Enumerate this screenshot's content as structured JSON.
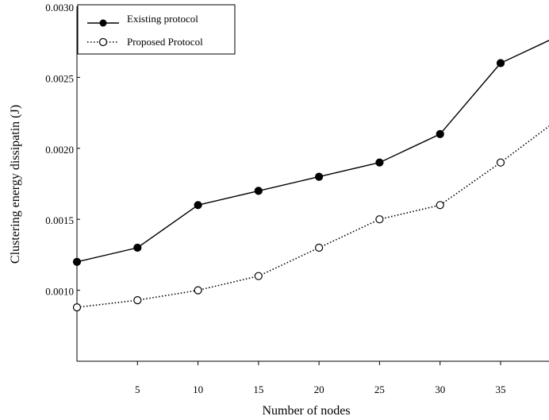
{
  "chart_data": {
    "type": "line",
    "xlabel": "Number of nodes",
    "ylabel": "Clustering energy dissipatin (J)",
    "x": [
      0,
      5,
      10,
      15,
      20,
      25,
      30,
      35,
      40
    ],
    "x_tick_labels": [
      "5",
      "10",
      "15",
      "20",
      "25",
      "30",
      "35"
    ],
    "x_tick_values": [
      5,
      10,
      15,
      20,
      25,
      30,
      35
    ],
    "xlim": [
      0,
      39
    ],
    "ylim": [
      0.0005,
      0.003
    ],
    "y_tick_values": [
      0.001,
      0.0015,
      0.002,
      0.0025,
      0.003
    ],
    "y_tick_labels": [
      "0.0010",
      "0.0015",
      "0.0020",
      "0.0025",
      "0.0030"
    ],
    "series": [
      {
        "name": "Existing protocol",
        "values": [
          0.0012,
          0.0013,
          0.0016,
          0.0017,
          0.0018,
          0.0019,
          0.0021,
          0.0026,
          0.0028
        ],
        "line_style": "solid",
        "marker": "filled-circle",
        "color": "#000000"
      },
      {
        "name": "Proposed Protocol",
        "values": [
          0.00088,
          0.00093,
          0.001,
          0.0011,
          0.0013,
          0.0015,
          0.0016,
          0.0019,
          0.00222
        ],
        "line_style": "dotted",
        "marker": "open-circle",
        "color": "#000000"
      }
    ],
    "legend": "top-left",
    "grid": false
  }
}
